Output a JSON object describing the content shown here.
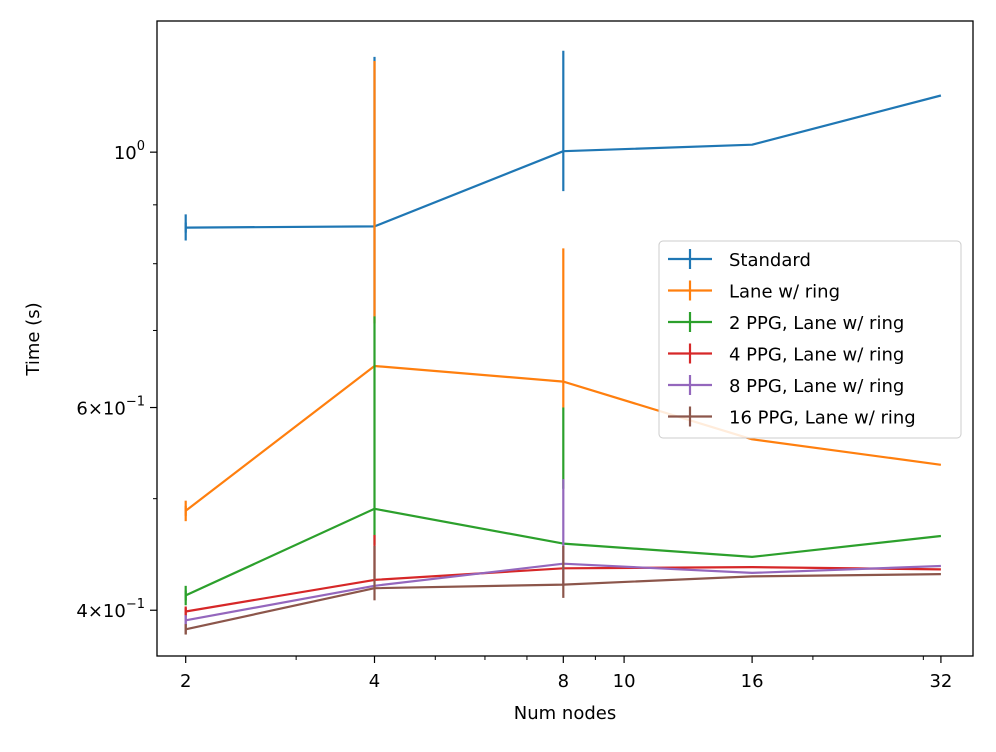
{
  "chart_data": {
    "type": "line",
    "title": "",
    "xlabel": "Num nodes",
    "ylabel": "Time (s)",
    "xscale": "log",
    "yscale": "log",
    "xlim": [
      1.8,
      36
    ],
    "ylim": [
      0.365,
      1.3
    ],
    "x": [
      2,
      4,
      8,
      16,
      32
    ],
    "x_ticks": [
      {
        "value": 2,
        "label": "2"
      },
      {
        "value": 4,
        "label": "4"
      },
      {
        "value": 8,
        "label": "8"
      },
      {
        "value": 10,
        "label": "10"
      },
      {
        "value": 16,
        "label": "16"
      },
      {
        "value": 32,
        "label": "32"
      }
    ],
    "y_ticks": [
      {
        "value": 0.4,
        "mantissa": "4",
        "base": "10",
        "exp": "−1"
      },
      {
        "value": 0.6,
        "mantissa": "6",
        "base": "10",
        "exp": "−1"
      },
      {
        "value": 1.0,
        "mantissa": "",
        "base": "10",
        "exp": "0"
      }
    ],
    "legend_position": "center-right",
    "series": [
      {
        "name": "Standard",
        "color": "#1f77b4",
        "values": [
          0.86,
          0.862,
          1.002,
          1.015,
          1.12
        ],
        "err_low": [
          0.838,
          0.72,
          0.925,
          null,
          null
        ],
        "err_high": [
          0.883,
          1.21,
          1.225,
          null,
          null
        ]
      },
      {
        "name": "Lane w/ ring",
        "color": "#ff7f0e",
        "values": [
          0.488,
          0.652,
          0.632,
          0.563,
          0.535
        ],
        "err_low": [
          0.478,
          0.71,
          0.6,
          null,
          null
        ],
        "err_high": [
          0.498,
          1.2,
          0.825,
          null,
          null
        ]
      },
      {
        "name": "2 PPG, Lane w/ ring",
        "color": "#2ca02c",
        "values": [
          0.412,
          0.49,
          0.457,
          0.445,
          0.464
        ],
        "err_low": [
          0.404,
          0.456,
          0.51,
          null,
          null
        ],
        "err_high": [
          0.42,
          0.72,
          0.6,
          null,
          null
        ]
      },
      {
        "name": "4 PPG, Lane w/ ring",
        "color": "#d62728",
        "values": [
          0.399,
          0.425,
          0.435,
          0.436,
          0.434
        ],
        "err_low": [
          0.396,
          0.425,
          null,
          null,
          null
        ],
        "err_high": [
          0.402,
          0.465,
          null,
          null,
          null
        ]
      },
      {
        "name": "8 PPG, Lane w/ ring",
        "color": "#9467bd",
        "values": [
          0.392,
          0.42,
          0.439,
          0.431,
          0.437
        ],
        "err_low": [
          0.388,
          null,
          0.42,
          null,
          null
        ],
        "err_high": [
          0.396,
          null,
          0.52,
          null,
          null
        ]
      },
      {
        "name": "16 PPG, Lane w/ ring",
        "color": "#8c564b",
        "values": [
          0.385,
          0.418,
          0.421,
          0.428,
          0.43
        ],
        "err_low": [
          0.381,
          0.408,
          0.41,
          null,
          null
        ],
        "err_high": [
          0.389,
          0.455,
          0.455,
          null,
          null
        ]
      }
    ]
  }
}
